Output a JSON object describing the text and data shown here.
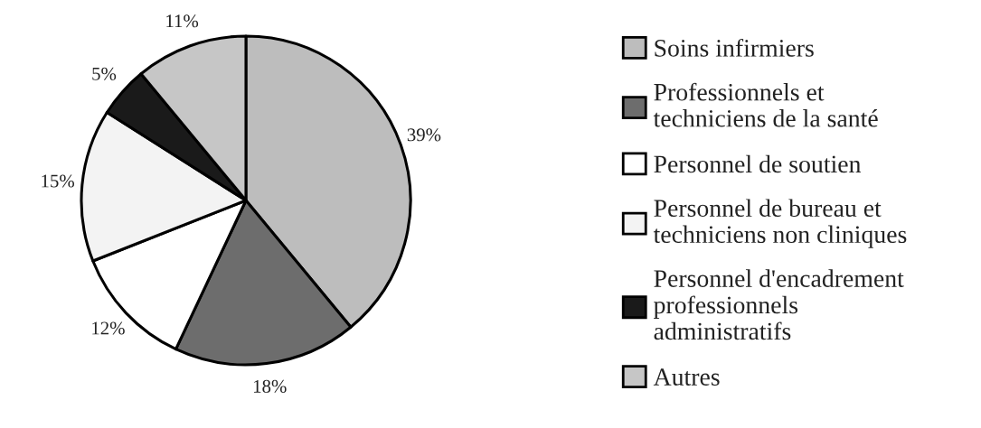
{
  "chart_data": {
    "type": "pie",
    "categories": [
      "Soins infirmiers",
      "Professionnels et\ntechniciens de la santé",
      "Personnel de soutien",
      "Personnel de bureau et\ntechniciens non cliniques",
      "Personnel d'encadrement\nprofessionnels\nadministratifs",
      "Autres"
    ],
    "values": [
      39,
      18,
      12,
      15,
      5,
      11
    ],
    "colors": [
      "#bdbdbd",
      "#6d6d6d",
      "#ffffff",
      "#f3f3f3",
      "#1a1a1a",
      "#c6c6c6"
    ],
    "value_labels": [
      "39%",
      "18%",
      "12%",
      "15%",
      "5%",
      "11%"
    ],
    "legend": "right"
  }
}
